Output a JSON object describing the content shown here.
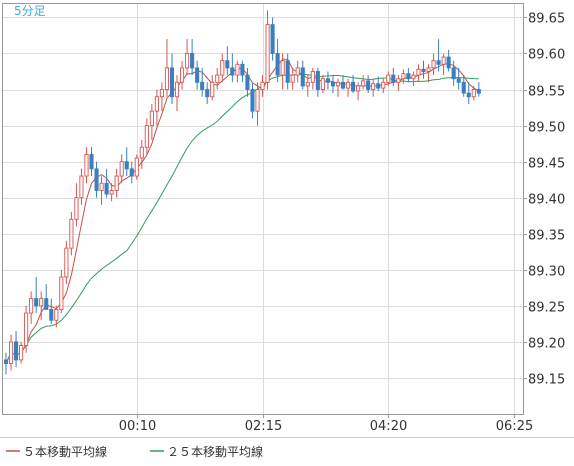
{
  "chart_data": {
    "type": "candlestick",
    "timeframe_label": "5分足",
    "ylim": [
      89.1,
      89.67
    ],
    "y_ticks": [
      "89.15",
      "89.20",
      "89.25",
      "89.30",
      "89.35",
      "89.40",
      "89.45",
      "89.50",
      "89.55",
      "89.60",
      "89.65"
    ],
    "x_ticks": [
      {
        "label": "00:10",
        "index": 26
      },
      {
        "label": "02:15",
        "index": 51
      },
      {
        "label": "04:20",
        "index": 76
      },
      {
        "label": "06:25",
        "index": 101
      }
    ],
    "grid": true,
    "colors": {
      "up": "#d9534f",
      "down": "#3a7fbf",
      "ma5": "#c0504d",
      "ma25": "#2e9e5b",
      "grid": "#dddddd",
      "frame": "#999999",
      "timeframe": "#3fa9e0"
    },
    "legend": [
      {
        "label": "５本移動平均線",
        "color": "#c0504d"
      },
      {
        "label": "２５本移動平均線",
        "color": "#2e9e5b"
      }
    ],
    "candles": [
      [
        89.175,
        89.185,
        89.155,
        89.17
      ],
      [
        89.17,
        89.21,
        89.16,
        89.2
      ],
      [
        89.2,
        89.215,
        89.165,
        89.175
      ],
      [
        89.175,
        89.2,
        89.17,
        89.195
      ],
      [
        89.195,
        89.25,
        89.185,
        89.24
      ],
      [
        89.24,
        89.27,
        89.225,
        89.26
      ],
      [
        89.26,
        89.29,
        89.24,
        89.25
      ],
      [
        89.25,
        89.27,
        89.23,
        89.26
      ],
      [
        89.26,
        89.28,
        89.25,
        89.245
      ],
      [
        89.245,
        89.26,
        89.225,
        89.23
      ],
      [
        89.23,
        89.25,
        89.22,
        89.245
      ],
      [
        89.245,
        89.3,
        89.24,
        89.29
      ],
      [
        89.29,
        89.34,
        89.28,
        89.33
      ],
      [
        89.33,
        89.38,
        89.32,
        89.37
      ],
      [
        89.37,
        89.42,
        89.36,
        89.4
      ],
      [
        89.4,
        89.44,
        89.39,
        89.43
      ],
      [
        89.43,
        89.47,
        89.42,
        89.46
      ],
      [
        89.46,
        89.47,
        89.43,
        89.44
      ],
      [
        89.44,
        89.45,
        89.4,
        89.41
      ],
      [
        89.41,
        89.43,
        89.39,
        89.42
      ],
      [
        89.42,
        89.44,
        89.4,
        89.405
      ],
      [
        89.405,
        89.42,
        89.395,
        89.41
      ],
      [
        89.41,
        89.44,
        89.4,
        89.43
      ],
      [
        89.43,
        89.46,
        89.42,
        89.45
      ],
      [
        89.45,
        89.47,
        89.43,
        89.44
      ],
      [
        89.44,
        89.45,
        89.42,
        89.43
      ],
      [
        89.43,
        89.46,
        89.425,
        89.455
      ],
      [
        89.455,
        89.48,
        89.44,
        89.47
      ],
      [
        89.47,
        89.51,
        89.46,
        89.5
      ],
      [
        89.5,
        89.53,
        89.48,
        89.52
      ],
      [
        89.52,
        89.55,
        89.5,
        89.54
      ],
      [
        89.54,
        89.56,
        89.52,
        89.55
      ],
      [
        89.55,
        89.62,
        89.54,
        89.58
      ],
      [
        89.58,
        89.6,
        89.53,
        89.54
      ],
      [
        89.54,
        89.57,
        89.52,
        89.56
      ],
      [
        89.56,
        89.59,
        89.55,
        89.58
      ],
      [
        89.58,
        89.62,
        89.57,
        89.6
      ],
      [
        89.6,
        89.62,
        89.57,
        89.58
      ],
      [
        89.58,
        89.59,
        89.55,
        89.56
      ],
      [
        89.56,
        89.58,
        89.54,
        89.55
      ],
      [
        89.55,
        89.56,
        89.53,
        89.54
      ],
      [
        89.54,
        89.57,
        89.535,
        89.56
      ],
      [
        89.56,
        89.58,
        89.55,
        89.57
      ],
      [
        89.57,
        89.6,
        89.56,
        89.59
      ],
      [
        89.59,
        89.61,
        89.57,
        89.58
      ],
      [
        89.58,
        89.6,
        89.56,
        89.57
      ],
      [
        89.57,
        89.59,
        89.56,
        89.585
      ],
      [
        89.585,
        89.59,
        89.56,
        89.57
      ],
      [
        89.57,
        89.58,
        89.54,
        89.55
      ],
      [
        89.55,
        89.56,
        89.51,
        89.52
      ],
      [
        89.52,
        89.56,
        89.5,
        89.55
      ],
      [
        89.55,
        89.57,
        89.54,
        89.56
      ],
      [
        89.56,
        89.66,
        89.55,
        89.64
      ],
      [
        89.64,
        89.65,
        89.59,
        89.6
      ],
      [
        89.6,
        89.62,
        89.56,
        89.57
      ],
      [
        89.57,
        89.6,
        89.55,
        89.59
      ],
      [
        89.59,
        89.6,
        89.55,
        89.56
      ],
      [
        89.56,
        89.58,
        89.55,
        89.57
      ],
      [
        89.57,
        89.59,
        89.56,
        89.58
      ],
      [
        89.58,
        89.59,
        89.55,
        89.555
      ],
      [
        89.555,
        89.57,
        89.54,
        89.56
      ],
      [
        89.56,
        89.58,
        89.55,
        89.575
      ],
      [
        89.575,
        89.58,
        89.54,
        89.55
      ],
      [
        89.55,
        89.57,
        89.545,
        89.565
      ],
      [
        89.565,
        89.575,
        89.55,
        89.56
      ],
      [
        89.56,
        89.57,
        89.545,
        89.555
      ],
      [
        89.555,
        89.565,
        89.54,
        89.56
      ],
      [
        89.56,
        89.57,
        89.55,
        89.552
      ],
      [
        89.552,
        89.565,
        89.54,
        89.56
      ],
      [
        89.56,
        89.57,
        89.545,
        89.548
      ],
      [
        89.548,
        89.56,
        89.535,
        89.555
      ],
      [
        89.555,
        89.57,
        89.55,
        89.562
      ],
      [
        89.562,
        89.57,
        89.545,
        89.55
      ],
      [
        89.55,
        89.565,
        89.54,
        89.558
      ],
      [
        89.558,
        89.568,
        89.548,
        89.552
      ],
      [
        89.552,
        89.565,
        89.545,
        89.56
      ],
      [
        89.56,
        89.575,
        89.555,
        89.57
      ],
      [
        89.57,
        89.58,
        89.555,
        89.56
      ],
      [
        89.56,
        89.57,
        89.548,
        89.565
      ],
      [
        89.565,
        89.578,
        89.558,
        89.572
      ],
      [
        89.572,
        89.58,
        89.56,
        89.565
      ],
      [
        89.565,
        89.575,
        89.555,
        89.57
      ],
      [
        89.57,
        89.585,
        89.562,
        89.578
      ],
      [
        89.578,
        89.59,
        89.565,
        89.575
      ],
      [
        89.575,
        89.585,
        89.56,
        89.58
      ],
      [
        89.58,
        89.6,
        89.57,
        89.59
      ],
      [
        89.59,
        89.62,
        89.575,
        89.585
      ],
      [
        89.585,
        89.6,
        89.57,
        89.595
      ],
      [
        89.595,
        89.605,
        89.575,
        89.58
      ],
      [
        89.58,
        89.59,
        89.555,
        89.565
      ],
      [
        89.565,
        89.58,
        89.55,
        89.56
      ],
      [
        89.56,
        89.57,
        89.54,
        89.545
      ],
      [
        89.545,
        89.56,
        89.53,
        89.54
      ],
      [
        89.54,
        89.555,
        89.535,
        89.55
      ],
      [
        89.55,
        89.56,
        89.54,
        89.545
      ]
    ]
  }
}
